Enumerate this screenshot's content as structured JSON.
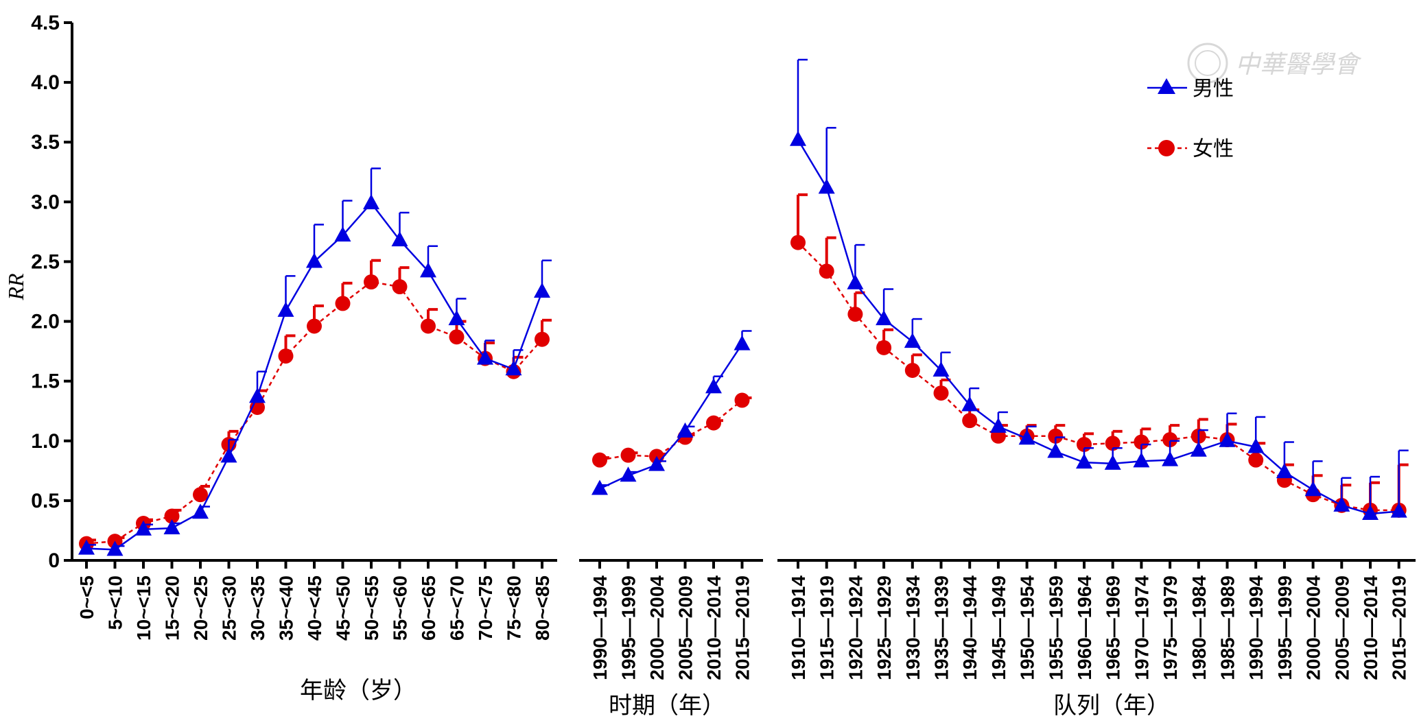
{
  "watermark": "中華醫學會",
  "chart_data": {
    "type": "line",
    "ylabel": "RR",
    "ylim": [
      0,
      4.5
    ],
    "yticks": [
      "0",
      "0.5",
      "1.0",
      "1.5",
      "2.0",
      "2.5",
      "3.0",
      "3.5",
      "4.0",
      "4.5"
    ],
    "legend": {
      "position": "top-right",
      "entries": [
        {
          "name": "男性",
          "color": "#0000e0",
          "marker": "triangle"
        },
        {
          "name": "女性",
          "color": "#e00000",
          "marker": "circle"
        }
      ]
    },
    "panels": [
      {
        "xlabel": "年龄（岁）",
        "categories": [
          "0~<5",
          "5~<10",
          "10~<15",
          "15~<20",
          "20~<25",
          "25~<30",
          "30~<35",
          "35~<40",
          "40~<45",
          "45~<50",
          "50~<55",
          "55~<60",
          "60~<65",
          "65~<70",
          "70~<75",
          "75~<80",
          "80~<85"
        ],
        "series": [
          {
            "name": "男性",
            "values": [
              0.1,
              0.09,
              0.26,
              0.27,
              0.4,
              0.87,
              1.37,
              2.09,
              2.5,
              2.72,
              2.99,
              2.68,
              2.42,
              2.02,
              1.69,
              1.6,
              2.25
            ],
            "upper": [
              0.13,
              0.12,
              0.3,
              0.31,
              0.45,
              1.01,
              1.58,
              2.38,
              2.81,
              3.01,
              3.28,
              2.91,
              2.63,
              2.19,
              1.84,
              1.76,
              2.51
            ]
          },
          {
            "name": "女性",
            "values": [
              0.14,
              0.16,
              0.31,
              0.37,
              0.55,
              0.97,
              1.28,
              1.71,
              1.96,
              2.15,
              2.33,
              2.29,
              1.96,
              1.87,
              1.69,
              1.58,
              1.85
            ],
            "upper": [
              0.17,
              0.19,
              0.34,
              0.42,
              0.62,
              1.08,
              1.42,
              1.88,
              2.13,
              2.32,
              2.51,
              2.45,
              2.1,
              2.0,
              1.82,
              1.7,
              2.01
            ]
          }
        ]
      },
      {
        "xlabel": "时期（年）",
        "categories": [
          "1990—1994",
          "1995—1999",
          "2000—2004",
          "2005—2009",
          "2010—2014",
          "2015—2019"
        ],
        "series": [
          {
            "name": "男性",
            "values": [
              0.6,
              0.71,
              0.8,
              1.08,
              1.45,
              1.81
            ],
            "upper": [
              0.63,
              0.74,
              0.83,
              1.12,
              1.54,
              1.92
            ]
          },
          {
            "name": "女性",
            "values": [
              0.84,
              0.88,
              0.87,
              1.03,
              1.15,
              1.34
            ],
            "upper": [
              0.86,
              0.9,
              0.89,
              1.05,
              1.17,
              1.36
            ]
          }
        ]
      },
      {
        "xlabel": "队列（年）",
        "categories": [
          "1910—1914",
          "1915—1919",
          "1920—1924",
          "1925—1929",
          "1930—1934",
          "1935—1939",
          "1940—1944",
          "1945—1949",
          "1950—1954",
          "1955—1959",
          "1960—1964",
          "1965—1969",
          "1970—1974",
          "1975—1979",
          "1980—1984",
          "1985—1989",
          "1990—1994",
          "1995—1999",
          "2000—2004",
          "2005—2009",
          "2010—2014",
          "2015—2019"
        ],
        "series": [
          {
            "name": "男性",
            "values": [
              3.52,
              3.12,
              2.32,
              2.02,
              1.83,
              1.59,
              1.3,
              1.12,
              1.02,
              0.91,
              0.82,
              0.81,
              0.83,
              0.84,
              0.92,
              1.0,
              0.95,
              0.74,
              0.59,
              0.46,
              0.39,
              0.41
            ],
            "upper": [
              4.19,
              3.62,
              2.64,
              2.27,
              2.02,
              1.74,
              1.44,
              1.24,
              1.12,
              1.03,
              0.94,
              0.94,
              0.97,
              1.0,
              1.09,
              1.23,
              1.2,
              0.99,
              0.83,
              0.69,
              0.7,
              0.92
            ]
          },
          {
            "name": "女性",
            "values": [
              2.66,
              2.42,
              2.06,
              1.78,
              1.59,
              1.4,
              1.17,
              1.04,
              1.04,
              1.04,
              0.97,
              0.98,
              0.99,
              1.01,
              1.04,
              1.01,
              0.84,
              0.67,
              0.55,
              0.46,
              0.42,
              0.42
            ],
            "upper": [
              3.06,
              2.7,
              2.24,
              1.93,
              1.72,
              1.51,
              1.26,
              1.13,
              1.13,
              1.13,
              1.06,
              1.08,
              1.1,
              1.13,
              1.18,
              1.14,
              0.98,
              0.8,
              0.71,
              0.63,
              0.65,
              0.8
            ]
          }
        ]
      }
    ]
  }
}
